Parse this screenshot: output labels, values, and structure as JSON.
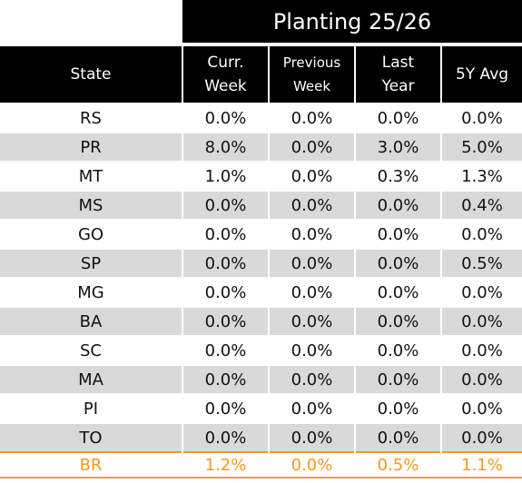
{
  "title": "Planting 25/26",
  "headers": {
    "state": "State",
    "curr_week": [
      "Curr.",
      "Week"
    ],
    "previous_week": [
      "Previous",
      "Week"
    ],
    "last_year": [
      "Last",
      "Year"
    ],
    "avg_5y": "5Y Avg"
  },
  "rows": [
    {
      "state": "RS",
      "curr": "0.0%",
      "prev": "0.0%",
      "last": "0.0%",
      "avg": "0.0%"
    },
    {
      "state": "PR",
      "curr": "8.0%",
      "prev": "0.0%",
      "last": "3.0%",
      "avg": "5.0%"
    },
    {
      "state": "MT",
      "curr": "1.0%",
      "prev": "0.0%",
      "last": "0.3%",
      "avg": "1.3%"
    },
    {
      "state": "MS",
      "curr": "0.0%",
      "prev": "0.0%",
      "last": "0.0%",
      "avg": "0.4%"
    },
    {
      "state": "GO",
      "curr": "0.0%",
      "prev": "0.0%",
      "last": "0.0%",
      "avg": "0.0%"
    },
    {
      "state": "SP",
      "curr": "0.0%",
      "prev": "0.0%",
      "last": "0.0%",
      "avg": "0.5%"
    },
    {
      "state": "MG",
      "curr": "0.0%",
      "prev": "0.0%",
      "last": "0.0%",
      "avg": "0.0%"
    },
    {
      "state": "BA",
      "curr": "0.0%",
      "prev": "0.0%",
      "last": "0.0%",
      "avg": "0.0%"
    },
    {
      "state": "SC",
      "curr": "0.0%",
      "prev": "0.0%",
      "last": "0.0%",
      "avg": "0.0%"
    },
    {
      "state": "MA",
      "curr": "0.0%",
      "prev": "0.0%",
      "last": "0.0%",
      "avg": "0.0%"
    },
    {
      "state": "PI",
      "curr": "0.0%",
      "prev": "0.0%",
      "last": "0.0%",
      "avg": "0.0%"
    },
    {
      "state": "TO",
      "curr": "0.0%",
      "prev": "0.0%",
      "last": "0.0%",
      "avg": "0.0%"
    }
  ],
  "total": {
    "state": "BR",
    "curr": "1.2%",
    "prev": "0.0%",
    "last": "0.5%",
    "avg": "1.1%"
  },
  "colors": {
    "header_bg": "#000000",
    "shade": "#d9d9d9",
    "total_accent": "#f29a1e"
  }
}
